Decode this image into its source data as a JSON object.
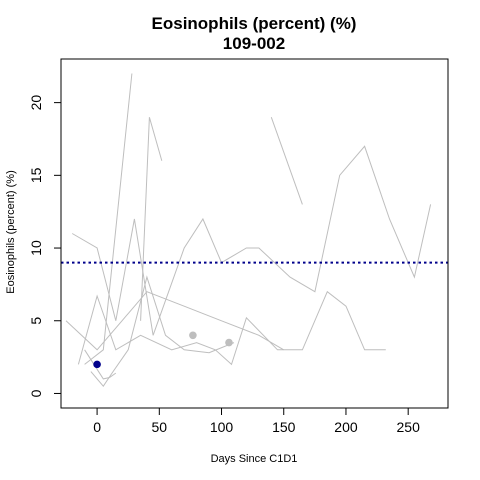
{
  "chart_data": {
    "type": "line",
    "title": "Eosinophils (percent) (%)",
    "subtitle": "109-002",
    "xlabel": "Days Since C1D1",
    "ylabel": "Eosinophils (percent) (%)",
    "xlim": [
      -29,
      282
    ],
    "ylim": [
      -1,
      23
    ],
    "xticks": [
      0,
      50,
      100,
      150,
      200,
      250
    ],
    "yticks": [
      0,
      5,
      10,
      15,
      20
    ],
    "grid": false,
    "reference_line": {
      "y": 9,
      "color": "#00008B",
      "style": "dotted"
    },
    "background_series_color": "#BEBEBE",
    "series": [
      {
        "x": [
          -10,
          5,
          28
        ],
        "y": [
          2,
          3,
          22
        ]
      },
      {
        "x": [
          35,
          42,
          52
        ],
        "y": [
          5,
          19,
          16
        ]
      },
      {
        "x": [
          -20,
          0,
          15,
          30,
          45,
          70,
          85,
          100,
          120,
          130,
          155,
          175,
          195,
          215,
          235,
          255,
          268
        ],
        "y": [
          11,
          10,
          5,
          12,
          4,
          10,
          12,
          9,
          10,
          10,
          8,
          7,
          15,
          17,
          12,
          8,
          13
        ]
      },
      {
        "x": [
          -25,
          0,
          20,
          40,
          70,
          100,
          130,
          150
        ],
        "y": [
          5,
          3,
          5,
          7,
          6,
          5,
          4,
          3
        ]
      },
      {
        "x": [
          -15,
          0,
          15,
          35,
          60,
          80,
          95,
          108,
          120,
          145,
          165,
          185,
          200,
          215,
          232
        ],
        "y": [
          2,
          6.7,
          3,
          4,
          3,
          3.5,
          3,
          2,
          5.2,
          3,
          3,
          7,
          6,
          3,
          3
        ]
      },
      {
        "x": [
          -5,
          5,
          12,
          25,
          40,
          55,
          70,
          90,
          110
        ],
        "y": [
          1.5,
          0.5,
          1.4,
          3,
          8,
          4,
          3,
          2.8,
          3.5
        ]
      },
      {
        "x": [
          -10,
          5,
          10,
          15
        ],
        "y": [
          3,
          1,
          1.1,
          1.4
        ]
      },
      {
        "x": [
          140,
          165
        ],
        "y": [
          19,
          13
        ]
      }
    ],
    "highlight_points": [
      {
        "x": 0,
        "y": 2,
        "color": "#00008B"
      },
      {
        "x": 77,
        "y": 4,
        "color": "#BEBEBE"
      },
      {
        "x": 106,
        "y": 3.5,
        "color": "#BEBEBE"
      }
    ]
  }
}
